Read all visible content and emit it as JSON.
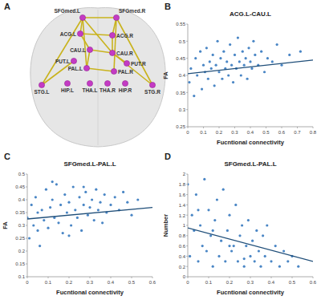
{
  "diagram": {
    "annotations": [
      "A"
    ],
    "nodes": [
      {
        "label": "SFGmed.L"
      },
      {
        "label": "SFGmed.R"
      },
      {
        "label": "ACG.L"
      },
      {
        "label": "ACG.R"
      },
      {
        "label": "CAU.L"
      },
      {
        "label": "CAU.R"
      },
      {
        "label": "PUT.L"
      },
      {
        "label": "PUT.R"
      },
      {
        "label": "PAL.L"
      },
      {
        "label": "PAL.R"
      },
      {
        "label": "THA.L"
      },
      {
        "label": "THA.R"
      },
      {
        "label": "HIP.L"
      },
      {
        "label": "HIP.R"
      },
      {
        "label": "STG.L"
      },
      {
        "label": "STG.R"
      }
    ],
    "edges": [
      [
        0,
        1
      ],
      [
        0,
        2
      ],
      [
        0,
        8
      ],
      [
        0,
        14
      ],
      [
        0,
        5
      ],
      [
        1,
        3
      ],
      [
        1,
        9
      ],
      [
        1,
        15
      ],
      [
        2,
        3
      ],
      [
        2,
        4
      ],
      [
        3,
        5
      ],
      [
        4,
        5
      ],
      [
        5,
        7
      ],
      [
        5,
        15
      ],
      [
        6,
        14
      ],
      [
        8,
        9
      ],
      [
        4,
        8
      ]
    ]
  },
  "chart_data": [
    {
      "type": "scatter",
      "title": "ACG.L-CAU.L",
      "x_label": "Fucntional connectivity",
      "y_label": "FA",
      "annotations": [
        "B"
      ],
      "xlim": [
        0,
        0.8
      ],
      "xticks": [
        0,
        0.1,
        0.2,
        0.3,
        0.4,
        0.5,
        0.6,
        0.7,
        0.8
      ],
      "ylim": [
        0.25,
        0.55
      ],
      "yticks": [
        0.25,
        0.3,
        0.35,
        0.4,
        0.45,
        0.5,
        0.55
      ],
      "series": [
        {
          "type": "scatter",
          "marker": "circle",
          "color": "#4a86c5",
          "x": [
            0.01,
            0.02,
            0.04,
            0.05,
            0.06,
            0.08,
            0.09,
            0.1,
            0.11,
            0.12,
            0.13,
            0.14,
            0.15,
            0.16,
            0.17,
            0.18,
            0.19,
            0.2,
            0.21,
            0.22,
            0.23,
            0.24,
            0.25,
            0.26,
            0.27,
            0.28,
            0.29,
            0.3,
            0.31,
            0.32,
            0.33,
            0.34,
            0.35,
            0.36,
            0.37,
            0.38,
            0.39,
            0.4,
            0.41,
            0.42,
            0.43,
            0.45,
            0.47,
            0.49,
            0.51,
            0.54,
            0.57,
            0.6,
            0.65,
            0.72
          ],
          "values": [
            0.38,
            0.42,
            0.34,
            0.45,
            0.4,
            0.47,
            0.36,
            0.43,
            0.41,
            0.48,
            0.39,
            0.44,
            0.42,
            0.46,
            0.37,
            0.43,
            0.5,
            0.41,
            0.45,
            0.39,
            0.47,
            0.42,
            0.44,
            0.4,
            0.49,
            0.43,
            0.38,
            0.46,
            0.42,
            0.51,
            0.44,
            0.4,
            0.47,
            0.43,
            0.45,
            0.39,
            0.48,
            0.44,
            0.42,
            0.5,
            0.46,
            0.43,
            0.47,
            0.41,
            0.45,
            0.44,
            0.49,
            0.43,
            0.46,
            0.47
          ]
        },
        {
          "type": "line",
          "line_style": "solid",
          "color": "#1f4e79",
          "x": [
            0,
            0.8
          ],
          "values": [
            0.405,
            0.445
          ]
        }
      ]
    },
    {
      "type": "scatter",
      "title": "SFGmed.L-PAL.L",
      "x_label": "Fucntional connectivity",
      "y_label": "FA",
      "annotations": [
        "C"
      ],
      "xlim": [
        0,
        0.6
      ],
      "xticks": [
        0,
        0.1,
        0.2,
        0.3,
        0.4,
        0.5,
        0.6
      ],
      "ylim": [
        0.1,
        0.5
      ],
      "yticks": [
        0.1,
        0.15,
        0.2,
        0.25,
        0.3,
        0.35,
        0.4,
        0.45,
        0.5
      ],
      "series": [
        {
          "type": "scatter",
          "marker": "circle",
          "color": "#4a86c5",
          "x": [
            0,
            0.01,
            0.02,
            0.03,
            0.04,
            0.05,
            0.06,
            0.07,
            0.08,
            0.09,
            0.1,
            0.11,
            0.12,
            0.13,
            0.14,
            0.15,
            0.16,
            0.17,
            0.18,
            0.19,
            0.2,
            0.21,
            0.22,
            0.23,
            0.24,
            0.25,
            0.26,
            0.27,
            0.28,
            0.29,
            0.3,
            0.31,
            0.32,
            0.33,
            0.34,
            0.35,
            0.36,
            0.37,
            0.38,
            0.4,
            0.42,
            0.44,
            0.46,
            0.48,
            0.5,
            0.53,
            0.05,
            0.12,
            0.2,
            0.27
          ],
          "values": [
            0.33,
            0.25,
            0.38,
            0.3,
            0.41,
            0.35,
            0.22,
            0.36,
            0.32,
            0.44,
            0.29,
            0.37,
            0.4,
            0.33,
            0.46,
            0.31,
            0.38,
            0.27,
            0.42,
            0.35,
            0.39,
            0.3,
            0.45,
            0.36,
            0.33,
            0.41,
            0.28,
            0.38,
            0.43,
            0.34,
            0.37,
            0.4,
            0.32,
            0.44,
            0.36,
            0.39,
            0.31,
            0.42,
            0.35,
            0.38,
            0.41,
            0.36,
            0.43,
            0.39,
            0.34,
            0.4,
            0.28,
            0.47,
            0.26,
            0.45
          ]
        },
        {
          "type": "line",
          "line_style": "solid",
          "color": "#1f4e79",
          "x": [
            0,
            0.6
          ],
          "values": [
            0.325,
            0.37
          ]
        }
      ]
    },
    {
      "type": "scatter",
      "title": "SFGmed.L-PAL.L",
      "x_label": "Fucntional connectivity",
      "y_label": "Number",
      "annotations": [
        "D"
      ],
      "xlim": [
        0,
        0.6
      ],
      "xticks": [
        0,
        0.1,
        0.2,
        0.3,
        0.4,
        0.5,
        0.6
      ],
      "ylim": [
        0,
        2
      ],
      "yticks": [
        0,
        0.2,
        0.4,
        0.6,
        0.8,
        1,
        1.2,
        1.4,
        1.6,
        1.8,
        2
      ],
      "series": [
        {
          "type": "scatter",
          "marker": "circle",
          "color": "#4a86c5",
          "x": [
            0,
            0.01,
            0.02,
            0.03,
            0.04,
            0.05,
            0.06,
            0.07,
            0.08,
            0.09,
            0.1,
            0.11,
            0.12,
            0.13,
            0.14,
            0.15,
            0.16,
            0.17,
            0.18,
            0.19,
            0.2,
            0.21,
            0.22,
            0.23,
            0.24,
            0.25,
            0.26,
            0.27,
            0.28,
            0.29,
            0.3,
            0.31,
            0.32,
            0.33,
            0.34,
            0.35,
            0.36,
            0.37,
            0.38,
            0.4,
            0.42,
            0.44,
            0.46,
            0.48,
            0.5,
            0.53,
            0.05,
            0.12,
            0.2,
            0.27
          ],
          "values": [
            1.8,
            0.4,
            1.2,
            0.9,
            1.6,
            0.3,
            1,
            0.6,
            1.9,
            0.5,
            1.3,
            0.8,
            0.2,
            1.1,
            1.5,
            0.4,
            0.7,
            1.7,
            0.3,
            0.9,
            1.2,
            0.5,
            0.6,
            1.4,
            0.3,
            0.8,
            1,
            0.2,
            0.6,
            1.1,
            0.4,
            0.7,
            0.3,
            0.9,
            0.5,
            0.2,
            0.8,
            0.4,
            1,
            0.3,
            0.6,
            0.2,
            0.5,
            0.3,
            0.4,
            0.2,
            1.3,
            0.9,
            0.6,
            0.35
          ]
        },
        {
          "type": "line",
          "line_style": "solid",
          "color": "#1f4e79",
          "x": [
            0,
            0.6
          ],
          "values": [
            0.95,
            0.3
          ]
        }
      ]
    }
  ]
}
